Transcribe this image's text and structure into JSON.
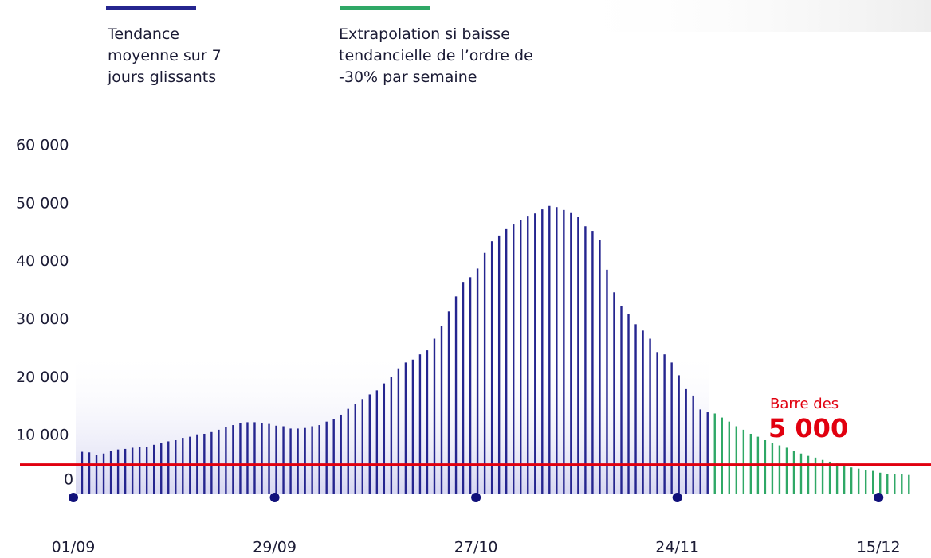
{
  "chart_data": {
    "type": "bar",
    "categories": [
      "01/09",
      null,
      null,
      null,
      null,
      null,
      null,
      null,
      null,
      null,
      null,
      null,
      null,
      null,
      null,
      null,
      null,
      null,
      null,
      null,
      null,
      null,
      null,
      null,
      null,
      null,
      null,
      null,
      "29/09",
      null,
      null,
      null,
      null,
      null,
      null,
      null,
      null,
      null,
      null,
      null,
      null,
      null,
      null,
      null,
      null,
      null,
      null,
      null,
      null,
      null,
      null,
      null,
      null,
      null,
      null,
      null,
      "27/10",
      null,
      null,
      null,
      null,
      null,
      null,
      null,
      null,
      null,
      null,
      null,
      null,
      null,
      null,
      null,
      null,
      null,
      null,
      null,
      null,
      null,
      null,
      null,
      null,
      null,
      null,
      null,
      "24/11",
      null,
      null,
      null,
      null,
      null,
      null,
      null,
      null,
      null,
      null,
      null,
      null,
      null,
      null,
      null,
      null,
      null,
      null,
      null,
      null,
      null,
      null,
      null,
      null,
      null,
      null,
      null,
      "15/12",
      null,
      null,
      null
    ],
    "series": [
      {
        "name": "Tendance moyenne sur 7 jours glissants",
        "color": "#25258f",
        "values": [
          7200,
          7100,
          6600,
          6900,
          7300,
          7600,
          7700,
          7900,
          8000,
          8100,
          8400,
          8700,
          9000,
          9200,
          9600,
          9800,
          10200,
          10300,
          10600,
          11000,
          11400,
          11800,
          12100,
          12300,
          12300,
          12100,
          12000,
          11700,
          11600,
          11200,
          11200,
          11300,
          11600,
          11800,
          12400,
          12900,
          13600,
          14600,
          15400,
          16300,
          17100,
          17800,
          19000,
          20100,
          21600,
          22600,
          23100,
          24000,
          24700,
          26700,
          28900,
          31400,
          34000,
          36500,
          37300,
          38800,
          41500,
          43500,
          44500,
          45600,
          46400,
          47200,
          47900,
          48300,
          49000,
          49600,
          49400,
          48900,
          48500,
          47700,
          46100,
          45300,
          43700,
          38600,
          34700,
          32400,
          30900,
          29200,
          28100,
          26700,
          24400,
          24000,
          22600,
          20400,
          18000,
          16900,
          14500,
          14000,
          null,
          null,
          null,
          null,
          null,
          null,
          null,
          null,
          null,
          null,
          null,
          null,
          null,
          null,
          null,
          null,
          null,
          null,
          null,
          null,
          null,
          null,
          null,
          null,
          null,
          null,
          null,
          null
        ]
      },
      {
        "name": "Extrapolation si baisse tendancielle de l’ordre de -30% par semaine",
        "color": "#2fa866",
        "values": [
          null,
          null,
          null,
          null,
          null,
          null,
          null,
          null,
          null,
          null,
          null,
          null,
          null,
          null,
          null,
          null,
          null,
          null,
          null,
          null,
          null,
          null,
          null,
          null,
          null,
          null,
          null,
          null,
          null,
          null,
          null,
          null,
          null,
          null,
          null,
          null,
          null,
          null,
          null,
          null,
          null,
          null,
          null,
          null,
          null,
          null,
          null,
          null,
          null,
          null,
          null,
          null,
          null,
          null,
          null,
          null,
          null,
          null,
          null,
          null,
          null,
          null,
          null,
          null,
          null,
          null,
          null,
          null,
          null,
          null,
          null,
          null,
          null,
          null,
          null,
          null,
          null,
          null,
          null,
          null,
          null,
          null,
          null,
          null,
          null,
          null,
          null,
          null,
          13800,
          13100,
          12400,
          11600,
          11000,
          10300,
          9800,
          9200,
          8700,
          8300,
          7900,
          7400,
          6900,
          6500,
          6200,
          5800,
          5500,
          5200,
          4800,
          4500,
          4300,
          4000,
          3900,
          3600,
          3400,
          3400,
          3300,
          3200
        ]
      }
    ],
    "ylim": [
      0,
      60000
    ],
    "yticks": [
      {
        "value": 0,
        "label": "0"
      },
      {
        "value": 10000,
        "label": "10 000"
      },
      {
        "value": 20000,
        "label": "20 000"
      },
      {
        "value": 30000,
        "label": "30 000"
      },
      {
        "value": 40000,
        "label": "40 000"
      },
      {
        "value": 50000,
        "label": "50 000"
      },
      {
        "value": 60000,
        "label": "60 000"
      }
    ],
    "reference": {
      "value": 5000,
      "text": "Barre des",
      "value_label": "5 000",
      "color": "#e1000f"
    }
  }
}
